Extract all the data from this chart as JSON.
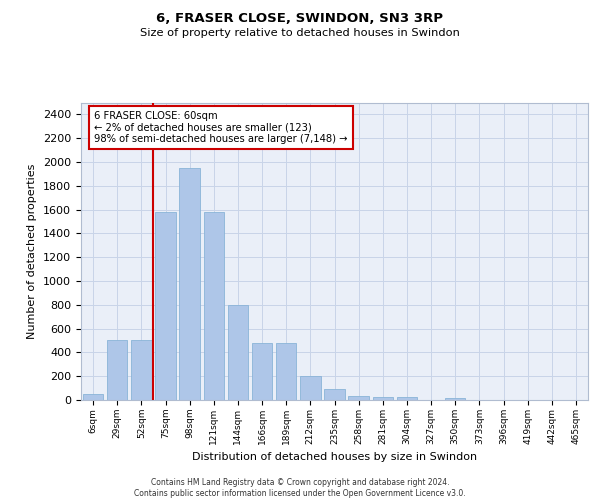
{
  "title1": "6, FRASER CLOSE, SWINDON, SN3 3RP",
  "title2": "Size of property relative to detached houses in Swindon",
  "xlabel": "Distribution of detached houses by size in Swindon",
  "ylabel": "Number of detached properties",
  "footer1": "Contains HM Land Registry data © Crown copyright and database right 2024.",
  "footer2": "Contains public sector information licensed under the Open Government Licence v3.0.",
  "categories": [
    "6sqm",
    "29sqm",
    "52sqm",
    "75sqm",
    "98sqm",
    "121sqm",
    "144sqm",
    "166sqm",
    "189sqm",
    "212sqm",
    "235sqm",
    "258sqm",
    "281sqm",
    "304sqm",
    "327sqm",
    "350sqm",
    "373sqm",
    "396sqm",
    "419sqm",
    "442sqm",
    "465sqm"
  ],
  "values": [
    50,
    505,
    505,
    1580,
    1950,
    1580,
    800,
    480,
    480,
    200,
    90,
    35,
    27,
    22,
    0,
    18,
    0,
    0,
    0,
    0,
    0
  ],
  "bar_color": "#aec6e8",
  "bar_edge_color": "#8ab4d8",
  "redline_x": 2.5,
  "annotation_text": "6 FRASER CLOSE: 60sqm\n← 2% of detached houses are smaller (123)\n98% of semi-detached houses are larger (7,148) →",
  "annotation_box_color": "#ffffff",
  "annotation_border_color": "#cc0000",
  "ylim": [
    0,
    2500
  ],
  "yticks": [
    0,
    200,
    400,
    600,
    800,
    1000,
    1200,
    1400,
    1600,
    1800,
    2000,
    2200,
    2400
  ],
  "redline_color": "#cc0000",
  "grid_color": "#c8d4e8",
  "bg_color": "#eaeff8"
}
